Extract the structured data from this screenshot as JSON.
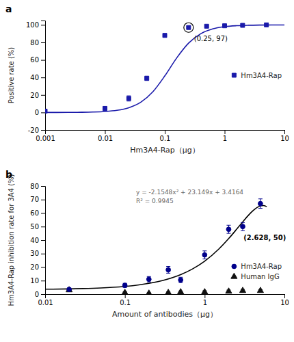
{
  "chart_data": [
    {
      "type": "scatter",
      "title": "a",
      "xlabel": "Hm3A4-Rap（μg）",
      "ylabel": "Positive rate (%)",
      "log": "x",
      "xlim": [
        0.001,
        10
      ],
      "xticks": [
        0.001,
        0.01,
        0.1,
        1,
        10
      ],
      "ylim": [
        -20,
        105
      ],
      "yticks": [
        -20,
        0,
        20,
        40,
        60,
        80,
        100
      ],
      "grid": false,
      "legend": "right",
      "series": [
        {
          "name": "Hm3A4-Rap",
          "type": "scatter",
          "marker": "square",
          "color": "#1a1aaa",
          "x": [
            0.001,
            0.01,
            0.025,
            0.05,
            0.1,
            0.25,
            0.5,
            1.0,
            2.0,
            5.0
          ],
          "values": [
            1.5,
            4.5,
            16.0,
            39.0,
            88.0,
            97.0,
            98.5,
            99.0,
            99.5,
            100.0
          ],
          "errors": [
            2.0,
            2.5,
            3.0,
            2.5,
            2.0,
            1.0,
            0.8,
            0.8,
            0.5,
            0.3
          ]
        },
        {
          "type": "line",
          "line_style": "solid",
          "color": "#1a1aaa",
          "x": [
            0.001,
            0.0015849,
            0.0025119,
            0.0039811,
            0.0063096,
            0.01,
            0.015849,
            0.025119,
            0.039811,
            0.063096,
            0.1,
            0.15849,
            0.25119,
            0.39811,
            0.63096,
            1,
            1.5849,
            2.5119,
            3.9811,
            6.3096,
            10
          ],
          "values": [
            0.016,
            0.037,
            0.086,
            0.199,
            0.461,
            1.06,
            2.422,
            5.437,
            11.753,
            23.577,
            41.678,
            62.34,
            79.315,
            89.88,
            95.365,
            97.945,
            99.102,
            99.61,
            99.831,
            99.927,
            99.969
          ]
        }
      ],
      "annotations": [
        {
          "text": "(0.25, 97)",
          "x": 0.25,
          "y": 97,
          "marker": "circle"
        }
      ]
    },
    {
      "type": "scatter",
      "title": "b",
      "xlabel": "Amount of antibodies（μg）",
      "ylabel": "Hm3A4-Rap inhibition rate for 3A4 (%)",
      "log": "x",
      "xlim": [
        0.01,
        10
      ],
      "xticks": [
        0.01,
        0.1,
        1,
        10
      ],
      "ylim": [
        0,
        80
      ],
      "yticks": [
        0,
        10,
        20,
        30,
        40,
        50,
        60,
        70,
        80
      ],
      "grid": false,
      "legend": "lower right",
      "series": [
        {
          "name": "Hm3A4-Rap",
          "type": "scatter",
          "marker": "circle",
          "color": "#00008B",
          "x": [
            0.02,
            0.1,
            0.2,
            0.35,
            0.5,
            1.0,
            2.0,
            3.0,
            5.0
          ],
          "values": [
            3.5,
            6.5,
            11.0,
            18.0,
            10.5,
            29.0,
            48.0,
            50.0,
            67.0
          ],
          "errors": [
            1.0,
            1.5,
            2.0,
            2.5,
            2.0,
            3.0,
            3.0,
            3.0,
            3.5
          ]
        },
        {
          "name": "Human IgG",
          "type": "scatter",
          "marker": "triangle",
          "color": "#111111",
          "x": [
            0.02,
            0.1,
            0.2,
            0.35,
            0.5,
            1.0,
            2.0,
            3.0,
            5.0
          ],
          "values": [
            3.0,
            1.0,
            0.5,
            1.0,
            1.5,
            1.5,
            2.0,
            2.5,
            2.5
          ],
          "errors": [
            0.8,
            0.8,
            0.5,
            0.8,
            0.8,
            1.0,
            1.0,
            1.0,
            0.8
          ]
        },
        {
          "type": "line",
          "line_style": "solid",
          "color": "black",
          "x": [
            0.01,
            0.02,
            0.03,
            0.05,
            0.07,
            0.1,
            0.15,
            0.2,
            0.3,
            0.5,
            0.7,
            1,
            1.5,
            2,
            2.5,
            3,
            3.5,
            4,
            4.5,
            5,
            5.5,
            6
          ],
          "values": [
            3.6477,
            3.8785,
            4.1089,
            4.5685,
            5.0263,
            5.7098,
            6.8403,
            7.96,
            10.1672,
            14.4522,
            18.5648,
            24.4106,
            33.2916,
            41.0952,
            47.8214,
            53.4702,
            58.0416,
            61.5356,
            63.9522,
            65.2914,
            65.5532,
            64.7376
          ]
        }
      ],
      "annotations": [
        {
          "text": "(2.628, 50)",
          "x": 2.628,
          "y": 50
        },
        {
          "text": "y = -2.1548x² + 23.149x + 3.4164"
        },
        {
          "text": "R² = 0.9945"
        }
      ]
    }
  ]
}
